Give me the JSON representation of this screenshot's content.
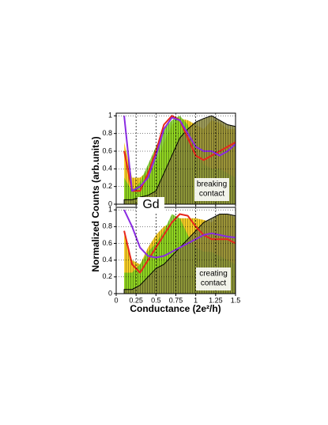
{
  "figure": {
    "ylabel": "Normalized Counts (arb.units)",
    "xlabel": "Conductance (2e²/h)",
    "label": "Gd"
  },
  "chart_data": [
    {
      "type": "area",
      "annotation": [
        "breaking",
        "contact"
      ],
      "x": [
        0.1,
        0.2,
        0.3,
        0.4,
        0.5,
        0.6,
        0.7,
        0.8,
        0.9,
        1.0,
        1.1,
        1.2,
        1.3,
        1.4,
        1.5
      ],
      "series": [
        {
          "style": "area",
          "color": "#f5c400",
          "values": [
            0.7,
            0.3,
            0.3,
            0.38,
            0.45,
            0.7,
            0.9,
            0.97,
            0.95,
            0.9,
            0.85,
            0.95,
            0.92,
            0.85,
            0.85
          ]
        },
        {
          "style": "area",
          "color": "#7ed321",
          "values": [
            0.3,
            0.15,
            0.25,
            0.45,
            0.65,
            0.85,
            0.95,
            1.0,
            0.9,
            0.6,
            0.45,
            0.4,
            0.4,
            0.35,
            0.3
          ]
        },
        {
          "style": "area",
          "color": "#8c8a3c",
          "values": [
            0.05,
            0.05,
            0.08,
            0.1,
            0.15,
            0.35,
            0.55,
            0.75,
            0.85,
            0.93,
            0.97,
            1.0,
            0.95,
            0.9,
            0.88
          ]
        },
        {
          "style": "line",
          "color": "#e8261c",
          "values": [
            0.6,
            0.15,
            0.15,
            0.35,
            0.6,
            0.9,
            1.0,
            0.95,
            0.75,
            0.55,
            0.5,
            0.55,
            0.6,
            0.65,
            0.7
          ]
        },
        {
          "style": "line",
          "color": "#8a2be2",
          "values": [
            1.0,
            0.15,
            0.2,
            0.3,
            0.55,
            0.85,
            0.98,
            0.95,
            0.8,
            0.65,
            0.6,
            0.6,
            0.55,
            0.6,
            0.68
          ]
        }
      ],
      "xlim": [
        0,
        1.5
      ],
      "ylim": [
        0,
        1.03
      ],
      "xticks": [
        0,
        0.25,
        0.5,
        0.75,
        1,
        1.25,
        1.5
      ],
      "show_xtick_labels": false,
      "yticks": [
        0,
        0.2,
        0.4,
        0.6,
        0.8,
        1
      ],
      "grid": true
    },
    {
      "type": "area",
      "annotation": [
        "creating",
        "contact"
      ],
      "x": [
        0.1,
        0.2,
        0.3,
        0.4,
        0.5,
        0.6,
        0.7,
        0.8,
        0.9,
        1.0,
        1.1,
        1.2,
        1.3,
        1.4,
        1.5
      ],
      "series": [
        {
          "style": "area",
          "color": "#f5c400",
          "values": [
            0.7,
            0.4,
            0.35,
            0.55,
            0.7,
            0.8,
            0.85,
            0.9,
            0.9,
            0.9,
            0.88,
            0.85,
            0.95,
            0.95,
            0.9
          ]
        },
        {
          "style": "area",
          "color": "#7ed321",
          "values": [
            0.25,
            0.25,
            0.35,
            0.5,
            0.6,
            0.75,
            0.95,
            0.9,
            0.7,
            0.55,
            0.5,
            0.5,
            0.45,
            0.4,
            0.35
          ]
        },
        {
          "style": "area",
          "color": "#8c8a3c",
          "values": [
            0.05,
            0.05,
            0.1,
            0.2,
            0.3,
            0.35,
            0.45,
            0.55,
            0.65,
            0.75,
            0.85,
            0.9,
            0.95,
            0.95,
            0.93
          ]
        },
        {
          "style": "line",
          "color": "#e8261c",
          "values": [
            0.75,
            0.35,
            0.25,
            0.4,
            0.55,
            0.7,
            0.85,
            0.95,
            0.93,
            0.8,
            0.7,
            0.65,
            0.65,
            0.65,
            0.6
          ]
        },
        {
          "style": "line",
          "color": "#8a2be2",
          "values": [
            1.0,
            0.8,
            0.55,
            0.45,
            0.43,
            0.45,
            0.5,
            0.55,
            0.6,
            0.65,
            0.7,
            0.72,
            0.7,
            0.68,
            0.67
          ]
        }
      ],
      "xlim": [
        0,
        1.5
      ],
      "ylim": [
        0,
        1.03
      ],
      "xticks": [
        0,
        0.25,
        0.5,
        0.75,
        1,
        1.25,
        1.5
      ],
      "show_xtick_labels": true,
      "yticks": [
        0,
        0.2,
        0.4,
        0.6,
        0.8,
        1
      ],
      "grid": true
    }
  ]
}
